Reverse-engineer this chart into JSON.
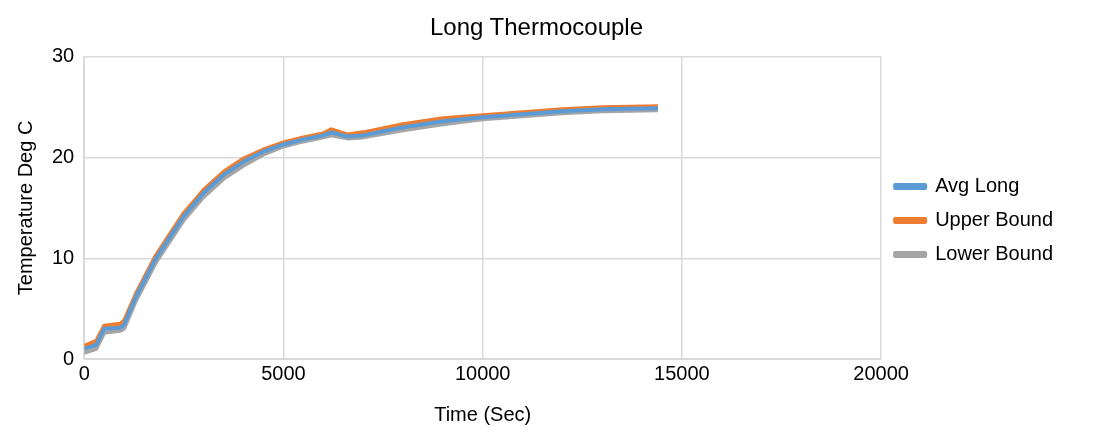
{
  "chart_data": {
    "type": "line",
    "title": "Long Thermocouple",
    "xlabel": "Time (Sec)",
    "ylabel": "Temperature Deg C",
    "x": [
      0,
      300,
      500,
      900,
      1000,
      1300,
      1800,
      2500,
      3000,
      3500,
      4000,
      4500,
      5000,
      5500,
      6000,
      6200,
      6600,
      7000,
      8000,
      9000,
      10000,
      11000,
      12000,
      13000,
      14400
    ],
    "series": [
      {
        "name": "Avg Long",
        "color": "#5b9bd5",
        "values": [
          1.0,
          1.4,
          3.0,
          3.1,
          3.4,
          6.2,
          10,
          14.2,
          16.5,
          18.3,
          19.6,
          20.6,
          21.3,
          21.8,
          22.2,
          22.5,
          22.1,
          22.2,
          23.0,
          23.6,
          24.0,
          24.3,
          24.6,
          24.8,
          24.9
        ]
      },
      {
        "name": "Upper Bound",
        "color": "#ed7d31",
        "values": [
          1.3,
          1.8,
          3.3,
          3.5,
          3.8,
          6.5,
          10.3,
          14.5,
          16.8,
          18.6,
          19.9,
          20.8,
          21.5,
          22.0,
          22.4,
          22.8,
          22.3,
          22.5,
          23.3,
          23.9,
          24.2,
          24.5,
          24.8,
          25.0,
          25.1
        ]
      },
      {
        "name": "Lower Bound",
        "color": "#a5a5a5",
        "values": [
          0.6,
          1.0,
          2.6,
          2.8,
          3.0,
          5.8,
          9.6,
          13.8,
          16.1,
          17.9,
          19.2,
          20.3,
          21.1,
          21.6,
          22.0,
          22.2,
          21.9,
          22.0,
          22.7,
          23.3,
          23.8,
          24.1,
          24.4,
          24.6,
          24.7
        ]
      }
    ],
    "xlim": [
      0,
      20000
    ],
    "xticks": [
      0,
      5000,
      10000,
      15000,
      20000
    ],
    "ylim": [
      0,
      30
    ],
    "yticks": [
      0,
      10,
      20,
      30
    ],
    "grid": true,
    "legend": "right",
    "marker": "none",
    "line_style": "solid"
  }
}
